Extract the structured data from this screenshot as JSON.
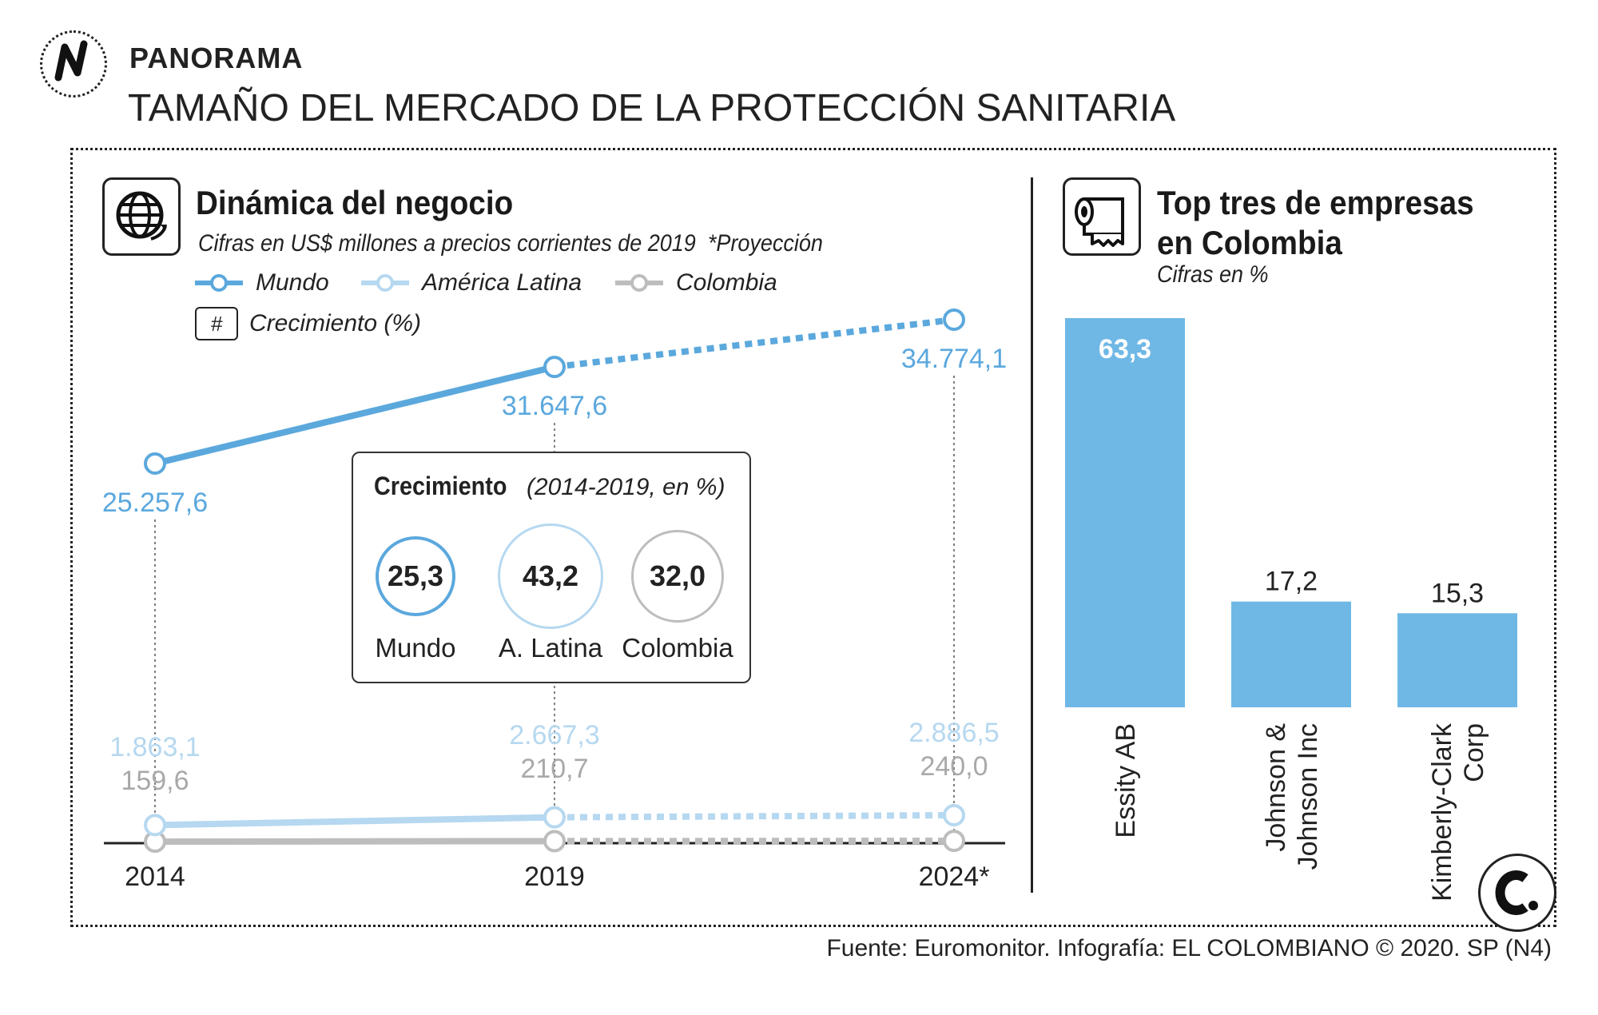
{
  "header": {
    "kicker": "PANORAMA",
    "title": "TAMAÑO DEL MERCADO DE LA PROTECCIÓN SANITARIA"
  },
  "left_panel": {
    "title": "Dinámica del negocio",
    "subtitle": "Cifras en US$ millones a precios corrientes de 2019",
    "projection_note": "*Proyección",
    "icon": "globe-icon",
    "legend": {
      "mundo": "Mundo",
      "america_latina": "América Latina",
      "colombia": "Colombia",
      "growth_symbol": "#",
      "growth": "Crecimiento (%)"
    },
    "growth_box": {
      "title": "Crecimiento",
      "subtitle": "(2014-2019, en %)",
      "items": [
        {
          "label": "Mundo",
          "value": "25,3"
        },
        {
          "label": "A. Latina",
          "value": "43,2"
        },
        {
          "label": "Colombia",
          "value": "32,0"
        }
      ]
    }
  },
  "right_panel": {
    "title_line1": "Top tres de empresas",
    "title_line2": "en Colombia",
    "subtitle": "Cifras en %",
    "icon": "toilet-paper-icon"
  },
  "source": "Fuente: Euromonitor. Infografía: EL COLOMBIANO © 2020. SP (N4)",
  "colors": {
    "mundo": "#5ba8dd",
    "america_latina": "#b6d8f0",
    "colombia": "#bdbdbd",
    "bar": "#6fb8e6",
    "ink": "#222222"
  },
  "chart_data": [
    {
      "type": "line",
      "title": "Dinámica del negocio",
      "x": [
        "2014",
        "2019",
        "2024*"
      ],
      "projected_from_index": 1,
      "series": [
        {
          "name": "Mundo",
          "values": [
            25257.6,
            31647.6,
            34774.1
          ],
          "labels": [
            "25.257,6",
            "31.647,6",
            "34.774,1"
          ]
        },
        {
          "name": "América Latina",
          "values": [
            1863.1,
            2667.3,
            2886.5
          ],
          "labels": [
            "1.863,1",
            "2.667,3",
            "2.886,5"
          ]
        },
        {
          "name": "Colombia",
          "values": [
            159.6,
            210.7,
            240.0
          ],
          "labels": [
            "159,6",
            "210,7",
            "240,0"
          ]
        }
      ]
    },
    {
      "type": "bar",
      "title": "Top tres de empresas en Colombia",
      "subtitle": "Cifras en %",
      "categories": [
        "Essity AB",
        "Johnson & Johnson Inc",
        "Kimberly-Clark Corp"
      ],
      "category_lines": [
        [
          "Essity AB"
        ],
        [
          "Johnson &",
          "Johnson Inc"
        ],
        [
          "Kimberly-Clark",
          "Corp"
        ]
      ],
      "values": [
        63.3,
        17.2,
        15.3
      ],
      "labels": [
        "63,3",
        "17,2",
        "15,3"
      ],
      "ylim": [
        0,
        63.3
      ]
    }
  ]
}
